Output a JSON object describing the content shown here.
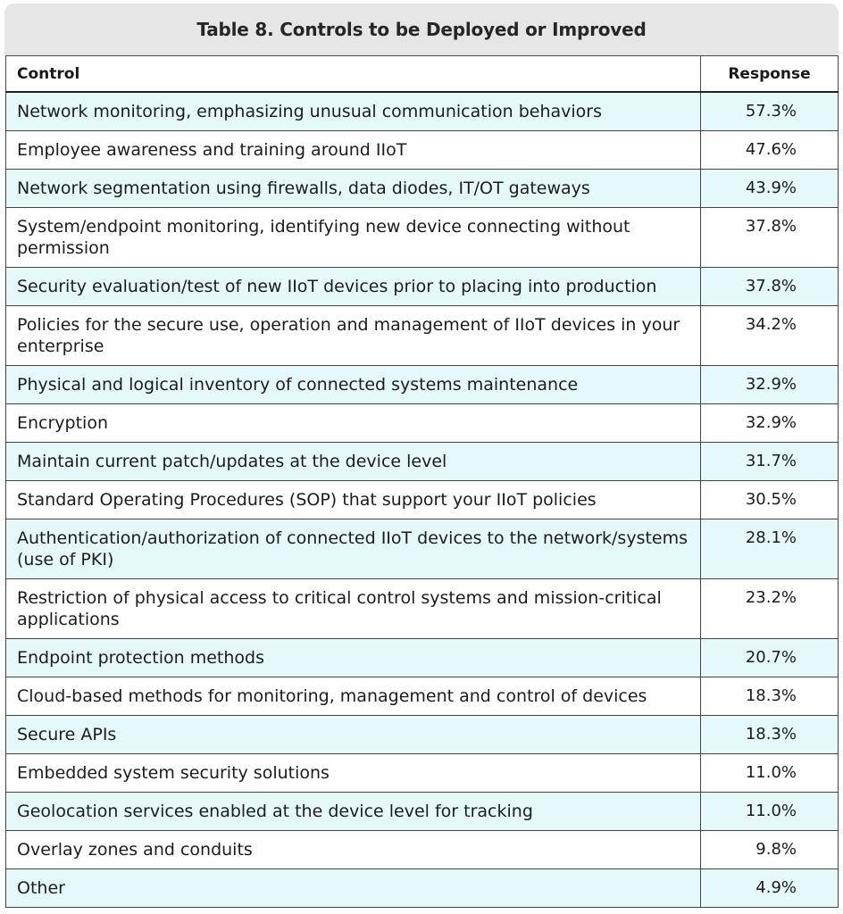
{
  "chart_data": {
    "type": "table",
    "title": "Table 8. Controls to be Deployed or Improved",
    "columns": [
      "Control",
      "Response"
    ],
    "rows": [
      {
        "control": "Network monitoring, emphasizing unusual communication behaviors",
        "response": "57.3%"
      },
      {
        "control": "Employee awareness and training around IIoT",
        "response": "47.6%"
      },
      {
        "control": "Network segmentation using firewalls, data diodes, IT/OT gateways",
        "response": "43.9%"
      },
      {
        "control": "System/endpoint monitoring, identifying new device connecting without permission",
        "response": "37.8%"
      },
      {
        "control": "Security evaluation/test of new IIoT devices prior to placing into production",
        "response": "37.8%"
      },
      {
        "control": "Policies for the secure use, operation and management of IIoT devices in your enterprise",
        "response": "34.2%"
      },
      {
        "control": "Physical and logical inventory of connected systems maintenance",
        "response": "32.9%"
      },
      {
        "control": "Encryption",
        "response": "32.9%"
      },
      {
        "control": "Maintain current patch/updates at the device level",
        "response": "31.7%"
      },
      {
        "control": "Standard Operating Procedures (SOP) that support your IIoT policies",
        "response": "30.5%"
      },
      {
        "control": "Authentication/authorization of connected IIoT devices to the network/systems (use of PKI)",
        "response": "28.1%"
      },
      {
        "control": "Restriction of physical access to critical control systems and mission-critical applications",
        "response": "23.2%"
      },
      {
        "control": "Endpoint protection methods",
        "response": "20.7%"
      },
      {
        "control": "Cloud-based methods for monitoring, management and control of devices",
        "response": "18.3%"
      },
      {
        "control": "Secure APIs",
        "response": "18.3%"
      },
      {
        "control": "Embedded system security solutions",
        "response": "11.0%"
      },
      {
        "control": "Geolocation services enabled at the device level for tracking",
        "response": "11.0%"
      },
      {
        "control": "Overlay zones and conduits",
        "response": "9.8%"
      },
      {
        "control": "Other",
        "response": "4.9%"
      }
    ]
  },
  "colors": {
    "title_background": "#e6e6e6",
    "shaded_row": "#e6f9fa",
    "plain_row": "#ffffff",
    "border": "#444444"
  }
}
